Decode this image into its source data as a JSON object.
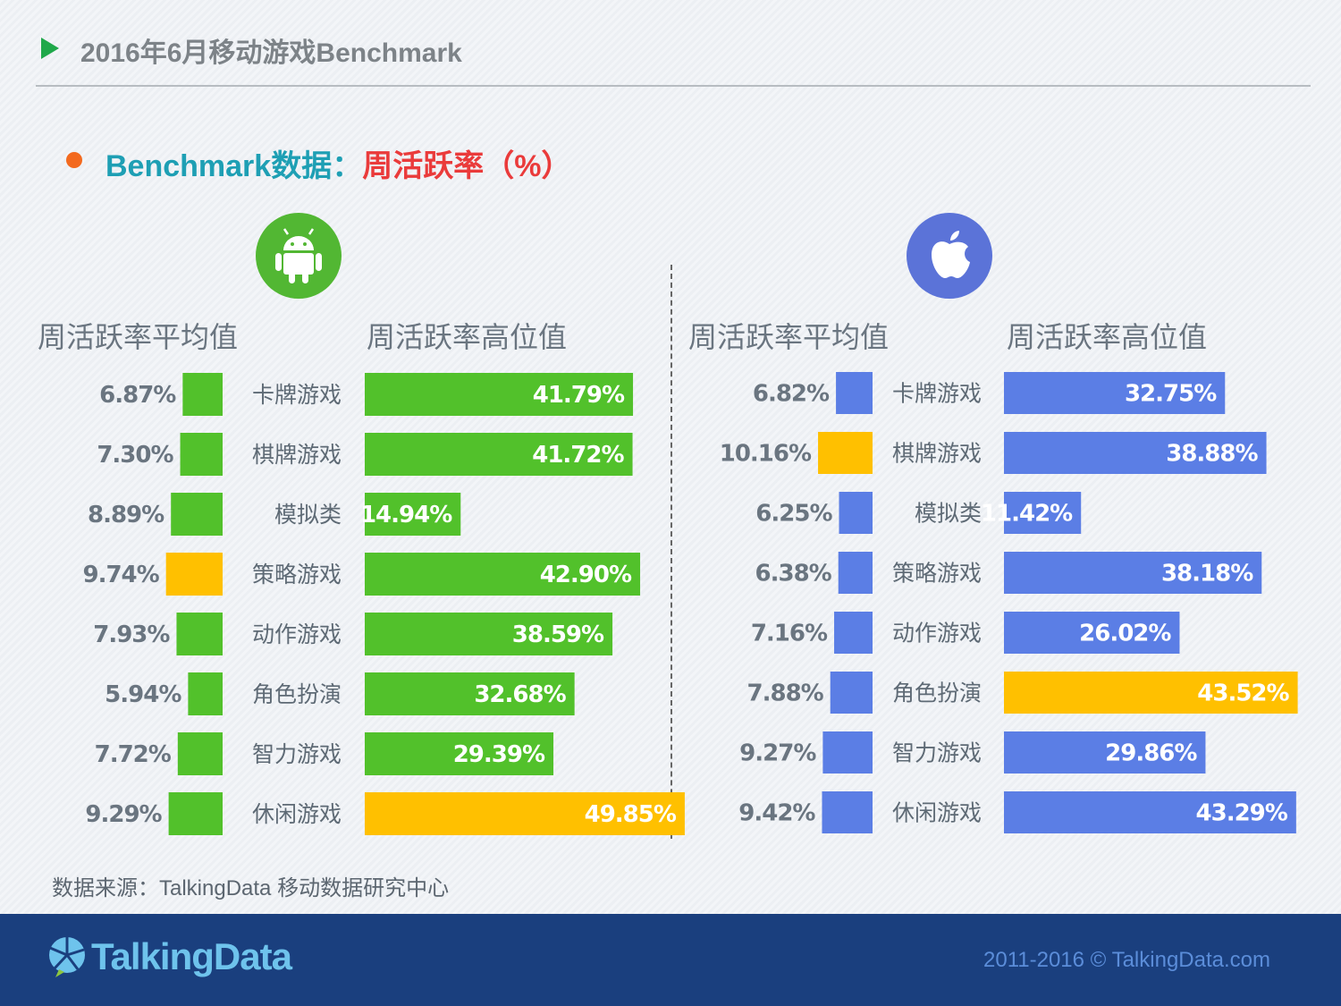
{
  "header": {
    "title": "2016年6月移动游戏Benchmark"
  },
  "subtitle": {
    "part_a": "Benchmark数据：",
    "part_b": "周活跃率（%）"
  },
  "android": {
    "icon": "android-icon",
    "avg_heading": "周活跃率平均值",
    "high_heading": "周活跃率高位值"
  },
  "ios": {
    "icon": "apple-icon",
    "avg_heading": "周活跃率平均值",
    "high_heading": "周活跃率高位值"
  },
  "colors": {
    "android": "#52c12b",
    "ios": "#5b7ee5",
    "highlight": "#ffc000"
  },
  "chart_data": [
    {
      "type": "bar",
      "platform": "Android",
      "categories": [
        "卡牌游戏",
        "棋牌游戏",
        "模拟类",
        "策略游戏",
        "动作游戏",
        "角色扮演",
        "智力游戏",
        "休闲游戏"
      ],
      "series": [
        {
          "name": "周活跃率平均值",
          "values": [
            6.87,
            7.3,
            8.89,
            9.74,
            7.93,
            5.94,
            7.72,
            9.29
          ],
          "labels": [
            "6.87%",
            "7.30%",
            "8.89%",
            "9.74%",
            "7.93%",
            "5.94%",
            "7.72%",
            "9.29%"
          ],
          "highlight_index": 3
        },
        {
          "name": "周活跃率高位值",
          "values": [
            41.79,
            41.72,
            14.94,
            42.9,
            38.59,
            32.68,
            29.39,
            49.85
          ],
          "labels": [
            "41.79%",
            "41.72%",
            "14.94%",
            "42.90%",
            "38.59%",
            "32.68%",
            "29.39%",
            "49.85%"
          ],
          "highlight_index": 7
        }
      ]
    },
    {
      "type": "bar",
      "platform": "iOS",
      "categories": [
        "卡牌游戏",
        "棋牌游戏",
        "模拟类",
        "策略游戏",
        "动作游戏",
        "角色扮演",
        "智力游戏",
        "休闲游戏"
      ],
      "series": [
        {
          "name": "周活跃率平均值",
          "values": [
            6.82,
            10.16,
            6.25,
            6.38,
            7.16,
            7.88,
            9.27,
            9.42
          ],
          "labels": [
            "6.82%",
            "10.16%",
            "6.25%",
            "6.38%",
            "7.16%",
            "7.88%",
            "9.27%",
            "9.42%"
          ],
          "highlight_index": 1
        },
        {
          "name": "周活跃率高位值",
          "values": [
            32.75,
            38.88,
            11.42,
            38.18,
            26.02,
            43.52,
            29.86,
            43.29
          ],
          "labels": [
            "32.75%",
            "38.88%",
            "11.42%",
            "38.18%",
            "26.02%",
            "43.52%",
            "29.86%",
            "43.29%"
          ],
          "highlight_index": 5
        }
      ]
    }
  ],
  "source": "数据来源：TalkingData 移动数据研究中心",
  "footer": {
    "logo": "TalkingData",
    "logo_icon": "talkingdata-logo-icon",
    "copyright": "2011-2016 © TalkingData.com"
  }
}
